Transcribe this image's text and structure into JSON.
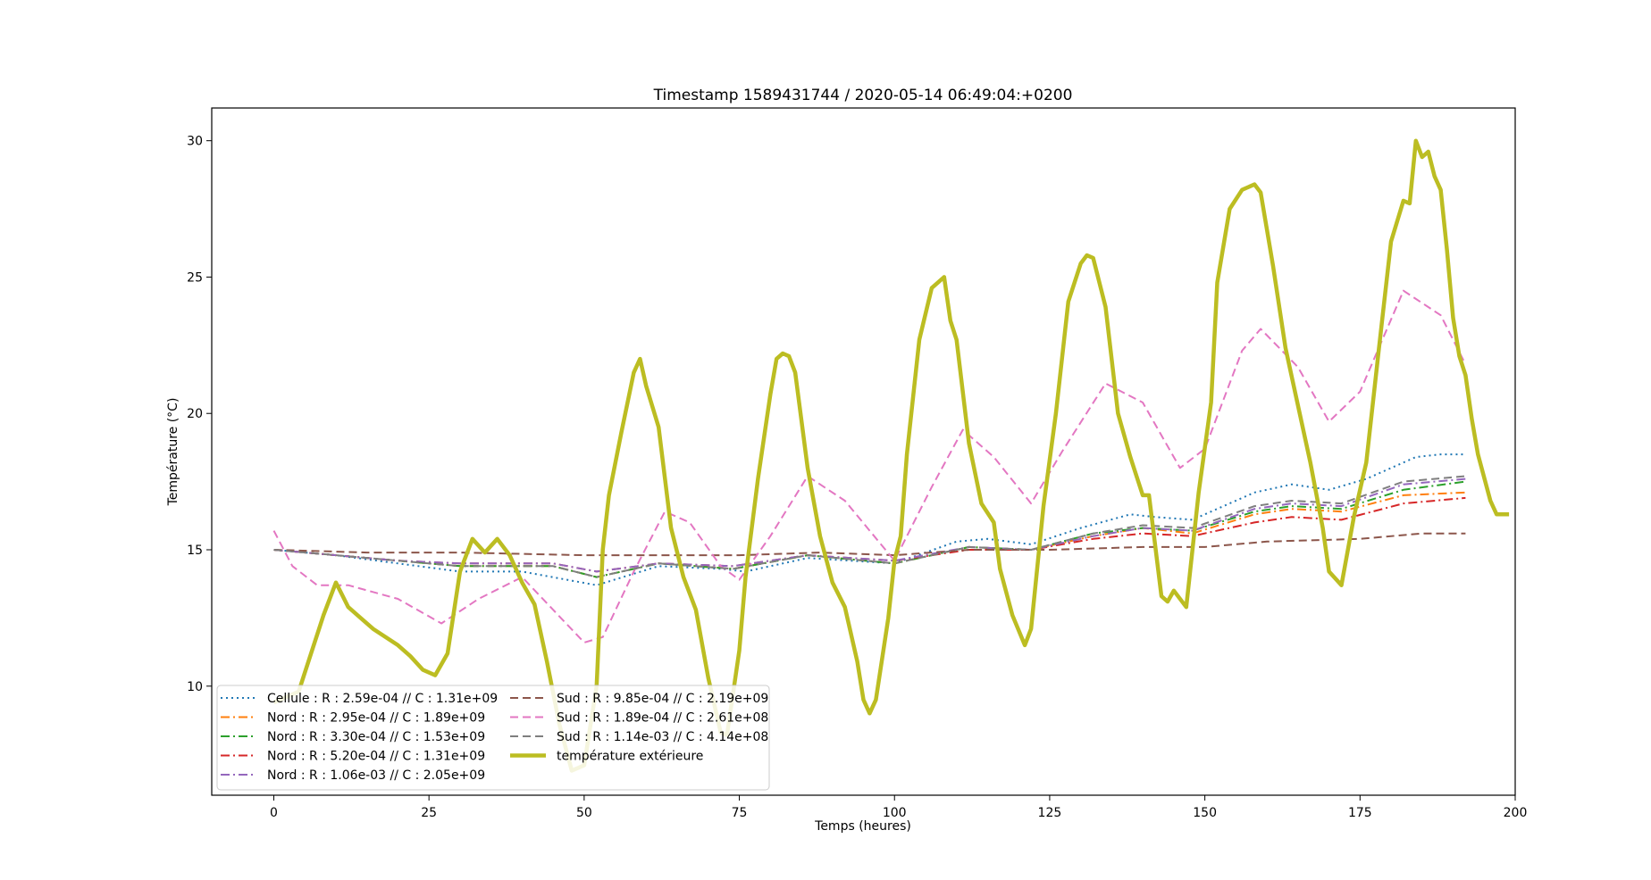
{
  "chart_data": {
    "type": "line",
    "title": "Timestamp 1589431744 / 2020-05-14 06:49:04:+0200",
    "xlabel": "Temps (heures)",
    "ylabel": "Température (°C)",
    "xlim": [
      -10,
      200
    ],
    "ylim": [
      6.0,
      31.2
    ],
    "xticks": [
      0,
      25,
      50,
      75,
      100,
      125,
      150,
      175,
      200
    ],
    "yticks": [
      10,
      15,
      20,
      25,
      30
    ],
    "grid": false,
    "legend_position": "lower-left",
    "series": [
      {
        "name": "Cellule : R : 2.59e-04 // C : 1.31e+09",
        "color": "#1f77b4",
        "style": "dotted",
        "points": [
          [
            0,
            15.0
          ],
          [
            10,
            14.8
          ],
          [
            20,
            14.5
          ],
          [
            30,
            14.2
          ],
          [
            40,
            14.2
          ],
          [
            52,
            13.7
          ],
          [
            62,
            14.4
          ],
          [
            72,
            14.3
          ],
          [
            76,
            14.2
          ],
          [
            86,
            14.7
          ],
          [
            100,
            14.5
          ],
          [
            110,
            15.3
          ],
          [
            115,
            15.4
          ],
          [
            122,
            15.2
          ],
          [
            130,
            15.8
          ],
          [
            138,
            16.3
          ],
          [
            142,
            16.2
          ],
          [
            148,
            16.1
          ],
          [
            158,
            17.1
          ],
          [
            164,
            17.4
          ],
          [
            170,
            17.2
          ],
          [
            176,
            17.6
          ],
          [
            184,
            18.4
          ],
          [
            188,
            18.5
          ],
          [
            192,
            18.5
          ]
        ]
      },
      {
        "name": "Nord : R : 2.95e-04 // C : 1.89e+09",
        "color": "#ff7f0e",
        "style": "dashdot",
        "points": [
          [
            0,
            15.0
          ],
          [
            10,
            14.8
          ],
          [
            20,
            14.6
          ],
          [
            30,
            14.4
          ],
          [
            45,
            14.4
          ],
          [
            52,
            14.0
          ],
          [
            62,
            14.5
          ],
          [
            74,
            14.3
          ],
          [
            86,
            14.8
          ],
          [
            100,
            14.5
          ],
          [
            112,
            15.1
          ],
          [
            122,
            15.0
          ],
          [
            132,
            15.5
          ],
          [
            140,
            15.8
          ],
          [
            148,
            15.6
          ],
          [
            158,
            16.3
          ],
          [
            164,
            16.5
          ],
          [
            172,
            16.4
          ],
          [
            182,
            17.0
          ],
          [
            192,
            17.1
          ]
        ]
      },
      {
        "name": "Nord : R : 3.30e-04 // C : 1.53e+09",
        "color": "#2ca02c",
        "style": "dashdot",
        "points": [
          [
            0,
            15.0
          ],
          [
            10,
            14.8
          ],
          [
            20,
            14.6
          ],
          [
            30,
            14.4
          ],
          [
            45,
            14.4
          ],
          [
            52,
            14.0
          ],
          [
            62,
            14.5
          ],
          [
            74,
            14.3
          ],
          [
            86,
            14.8
          ],
          [
            100,
            14.5
          ],
          [
            112,
            15.1
          ],
          [
            122,
            15.0
          ],
          [
            132,
            15.6
          ],
          [
            140,
            15.8
          ],
          [
            148,
            15.7
          ],
          [
            158,
            16.4
          ],
          [
            164,
            16.6
          ],
          [
            172,
            16.5
          ],
          [
            182,
            17.2
          ],
          [
            192,
            17.5
          ]
        ]
      },
      {
        "name": "Nord : R : 5.20e-04 // C : 1.31e+09",
        "color": "#d62728",
        "style": "dashdot",
        "points": [
          [
            0,
            15.0
          ],
          [
            10,
            14.8
          ],
          [
            20,
            14.6
          ],
          [
            30,
            14.5
          ],
          [
            45,
            14.5
          ],
          [
            52,
            14.2
          ],
          [
            62,
            14.5
          ],
          [
            74,
            14.4
          ],
          [
            86,
            14.8
          ],
          [
            100,
            14.6
          ],
          [
            112,
            15.0
          ],
          [
            122,
            15.0
          ],
          [
            132,
            15.4
          ],
          [
            140,
            15.6
          ],
          [
            148,
            15.5
          ],
          [
            158,
            16.0
          ],
          [
            164,
            16.2
          ],
          [
            172,
            16.1
          ],
          [
            182,
            16.7
          ],
          [
            192,
            16.9
          ]
        ]
      },
      {
        "name": "Nord : R : 1.06e-03 // C : 2.05e+09",
        "color": "#9467bd",
        "style": "dashdot",
        "points": [
          [
            0,
            15.0
          ],
          [
            10,
            14.8
          ],
          [
            20,
            14.6
          ],
          [
            30,
            14.5
          ],
          [
            45,
            14.5
          ],
          [
            52,
            14.2
          ],
          [
            62,
            14.5
          ],
          [
            74,
            14.4
          ],
          [
            86,
            14.8
          ],
          [
            100,
            14.6
          ],
          [
            112,
            15.1
          ],
          [
            122,
            15.0
          ],
          [
            132,
            15.5
          ],
          [
            140,
            15.8
          ],
          [
            148,
            15.7
          ],
          [
            158,
            16.5
          ],
          [
            164,
            16.7
          ],
          [
            172,
            16.6
          ],
          [
            182,
            17.4
          ],
          [
            192,
            17.6
          ]
        ]
      },
      {
        "name": "Sud : R : 9.85e-04 // C : 2.19e+09",
        "color": "#8c564b",
        "style": "dashed",
        "points": [
          [
            0,
            15.0
          ],
          [
            15,
            14.9
          ],
          [
            30,
            14.9
          ],
          [
            50,
            14.8
          ],
          [
            62,
            14.8
          ],
          [
            75,
            14.8
          ],
          [
            88,
            14.9
          ],
          [
            100,
            14.8
          ],
          [
            112,
            15.0
          ],
          [
            125,
            15.0
          ],
          [
            140,
            15.1
          ],
          [
            150,
            15.1
          ],
          [
            160,
            15.3
          ],
          [
            175,
            15.4
          ],
          [
            185,
            15.6
          ],
          [
            192,
            15.6
          ]
        ]
      },
      {
        "name": "Sud : R : 1.89e-04 // C : 2.61e+08",
        "color": "#e377c2",
        "style": "dashed",
        "points": [
          [
            0,
            15.7
          ],
          [
            3,
            14.4
          ],
          [
            7,
            13.7
          ],
          [
            12,
            13.7
          ],
          [
            20,
            13.2
          ],
          [
            27,
            12.3
          ],
          [
            33,
            13.2
          ],
          [
            40,
            14.0
          ],
          [
            45,
            12.8
          ],
          [
            50,
            11.6
          ],
          [
            53,
            11.8
          ],
          [
            58,
            14.2
          ],
          [
            63,
            16.4
          ],
          [
            67,
            16.0
          ],
          [
            72,
            14.4
          ],
          [
            75,
            13.9
          ],
          [
            80,
            15.5
          ],
          [
            86,
            17.7
          ],
          [
            92,
            16.8
          ],
          [
            100,
            14.6
          ],
          [
            106,
            17.3
          ],
          [
            111,
            19.4
          ],
          [
            116,
            18.4
          ],
          [
            122,
            16.7
          ],
          [
            127,
            18.6
          ],
          [
            134,
            21.1
          ],
          [
            140,
            20.4
          ],
          [
            146,
            18.0
          ],
          [
            150,
            18.7
          ],
          [
            156,
            22.3
          ],
          [
            159,
            23.1
          ],
          [
            165,
            21.7
          ],
          [
            170,
            19.7
          ],
          [
            175,
            20.8
          ],
          [
            182,
            24.5
          ],
          [
            188,
            23.6
          ],
          [
            192,
            21.8
          ]
        ]
      },
      {
        "name": "Sud : R : 1.14e-03 // C : 4.14e+08",
        "color": "#7f7f7f",
        "style": "dashed",
        "points": [
          [
            0,
            15.0
          ],
          [
            10,
            14.8
          ],
          [
            20,
            14.6
          ],
          [
            30,
            14.4
          ],
          [
            45,
            14.4
          ],
          [
            52,
            14.0
          ],
          [
            62,
            14.5
          ],
          [
            74,
            14.3
          ],
          [
            86,
            14.8
          ],
          [
            100,
            14.5
          ],
          [
            112,
            15.1
          ],
          [
            122,
            15.0
          ],
          [
            132,
            15.6
          ],
          [
            140,
            15.9
          ],
          [
            148,
            15.8
          ],
          [
            158,
            16.6
          ],
          [
            164,
            16.8
          ],
          [
            172,
            16.7
          ],
          [
            182,
            17.5
          ],
          [
            192,
            17.7
          ]
        ]
      },
      {
        "name": "température extérieure",
        "color": "#bcbd22",
        "style": "solid-thick",
        "points": [
          [
            0,
            9.4
          ],
          [
            4,
            9.8
          ],
          [
            6,
            11.2
          ],
          [
            8,
            12.6
          ],
          [
            10,
            13.8
          ],
          [
            12,
            12.9
          ],
          [
            14,
            12.5
          ],
          [
            16,
            12.1
          ],
          [
            20,
            11.5
          ],
          [
            22,
            11.1
          ],
          [
            24,
            10.6
          ],
          [
            26,
            10.4
          ],
          [
            28,
            11.2
          ],
          [
            30,
            14.2
          ],
          [
            32,
            15.4
          ],
          [
            34,
            14.9
          ],
          [
            36,
            15.4
          ],
          [
            38,
            14.8
          ],
          [
            40,
            13.8
          ],
          [
            42,
            13.0
          ],
          [
            44,
            10.9
          ],
          [
            46,
            8.6
          ],
          [
            48,
            6.9
          ],
          [
            50,
            7.1
          ],
          [
            52,
            10.0
          ],
          [
            53,
            15.0
          ],
          [
            54,
            17.0
          ],
          [
            56,
            19.3
          ],
          [
            58,
            21.5
          ],
          [
            59,
            22.0
          ],
          [
            60,
            21.0
          ],
          [
            62,
            19.5
          ],
          [
            64,
            15.8
          ],
          [
            66,
            14.0
          ],
          [
            68,
            12.8
          ],
          [
            70,
            10.3
          ],
          [
            72,
            8.3
          ],
          [
            73,
            8.2
          ],
          [
            75,
            11.3
          ],
          [
            76,
            14.0
          ],
          [
            78,
            17.6
          ],
          [
            80,
            20.7
          ],
          [
            81,
            22.0
          ],
          [
            82,
            22.2
          ],
          [
            83,
            22.1
          ],
          [
            84,
            21.5
          ],
          [
            86,
            18.0
          ],
          [
            88,
            15.5
          ],
          [
            90,
            13.8
          ],
          [
            92,
            12.9
          ],
          [
            94,
            10.9
          ],
          [
            95,
            9.5
          ],
          [
            96,
            9.0
          ],
          [
            97,
            9.5
          ],
          [
            99,
            12.5
          ],
          [
            100,
            14.6
          ],
          [
            101,
            15.5
          ],
          [
            102,
            18.5
          ],
          [
            104,
            22.7
          ],
          [
            106,
            24.6
          ],
          [
            108,
            25.0
          ],
          [
            109,
            23.4
          ],
          [
            110,
            22.7
          ],
          [
            112,
            18.9
          ],
          [
            114,
            16.7
          ],
          [
            116,
            16.0
          ],
          [
            117,
            14.3
          ],
          [
            119,
            12.6
          ],
          [
            121,
            11.5
          ],
          [
            122,
            12.1
          ],
          [
            124,
            16.6
          ],
          [
            126,
            20.0
          ],
          [
            128,
            24.1
          ],
          [
            130,
            25.5
          ],
          [
            131,
            25.8
          ],
          [
            132,
            25.7
          ],
          [
            134,
            23.9
          ],
          [
            136,
            20.0
          ],
          [
            138,
            18.4
          ],
          [
            140,
            17.0
          ],
          [
            141,
            17.0
          ],
          [
            143,
            13.3
          ],
          [
            144,
            13.1
          ],
          [
            145,
            13.5
          ],
          [
            147,
            12.9
          ],
          [
            149,
            17.1
          ],
          [
            151,
            20.4
          ],
          [
            152,
            24.8
          ],
          [
            154,
            27.5
          ],
          [
            156,
            28.2
          ],
          [
            158,
            28.4
          ],
          [
            159,
            28.1
          ],
          [
            161,
            25.4
          ],
          [
            163,
            22.4
          ],
          [
            165,
            20.3
          ],
          [
            167,
            18.2
          ],
          [
            169,
            15.8
          ],
          [
            170,
            14.2
          ],
          [
            172,
            13.7
          ],
          [
            174,
            16.2
          ],
          [
            176,
            18.2
          ],
          [
            178,
            22.3
          ],
          [
            180,
            26.3
          ],
          [
            182,
            27.8
          ],
          [
            183,
            27.7
          ],
          [
            184,
            30.0
          ],
          [
            185,
            29.4
          ],
          [
            186,
            29.6
          ],
          [
            187,
            28.7
          ],
          [
            188,
            28.2
          ],
          [
            189,
            26.0
          ],
          [
            190,
            23.5
          ],
          [
            191,
            22.1
          ],
          [
            192,
            21.4
          ],
          [
            193,
            19.8
          ],
          [
            194,
            18.5
          ],
          [
            196,
            16.8
          ],
          [
            197,
            16.3
          ],
          [
            199,
            16.3
          ]
        ]
      }
    ]
  }
}
